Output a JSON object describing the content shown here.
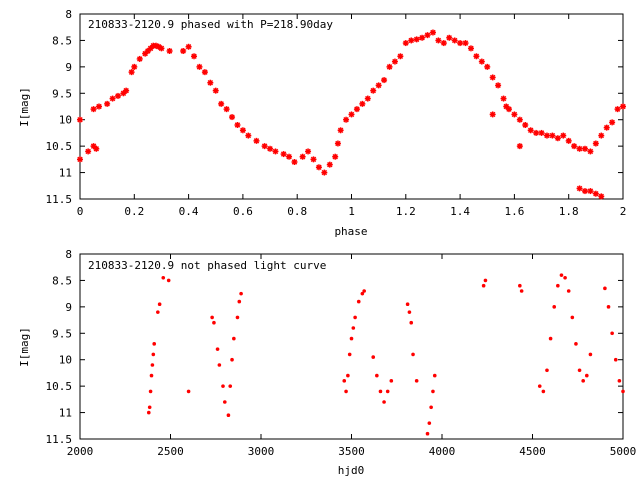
{
  "chart_data": [
    {
      "type": "scatter",
      "title": "210833-2120.9 phased with P=218.90day",
      "xlabel": "phase",
      "ylabel": "I[mag]",
      "xlim": [
        0,
        2
      ],
      "ylim": [
        8,
        11.5
      ],
      "y_inverted": true,
      "xticks": [
        "0",
        "0.2",
        "0.4",
        "0.6",
        "0.8",
        "1",
        "1.2",
        "1.4",
        "1.6",
        "1.8",
        "2"
      ],
      "yticks": [
        "8",
        "8.5",
        "9",
        "9.5",
        "10",
        "10.5",
        "11",
        "11.5"
      ],
      "marker": "plus-cross",
      "color": "#ff0000",
      "series": [
        {
          "points": [
            [
              0.0,
              10.0
            ],
            [
              0.0,
              10.75
            ],
            [
              0.03,
              10.6
            ],
            [
              0.05,
              10.5
            ],
            [
              0.06,
              10.55
            ],
            [
              0.05,
              9.8
            ],
            [
              0.07,
              9.75
            ],
            [
              0.1,
              9.7
            ],
            [
              0.12,
              9.6
            ],
            [
              0.14,
              9.55
            ],
            [
              0.16,
              9.5
            ],
            [
              0.17,
              9.45
            ],
            [
              0.19,
              9.1
            ],
            [
              0.2,
              9.0
            ],
            [
              0.22,
              8.85
            ],
            [
              0.24,
              8.75
            ],
            [
              0.25,
              8.7
            ],
            [
              0.26,
              8.65
            ],
            [
              0.27,
              8.6
            ],
            [
              0.28,
              8.6
            ],
            [
              0.29,
              8.62
            ],
            [
              0.3,
              8.65
            ],
            [
              0.33,
              8.7
            ],
            [
              0.38,
              8.7
            ],
            [
              0.4,
              8.62
            ],
            [
              0.42,
              8.8
            ],
            [
              0.44,
              9.0
            ],
            [
              0.46,
              9.1
            ],
            [
              0.48,
              9.3
            ],
            [
              0.5,
              9.45
            ],
            [
              0.52,
              9.7
            ],
            [
              0.54,
              9.8
            ],
            [
              0.56,
              9.95
            ],
            [
              0.58,
              10.1
            ],
            [
              0.6,
              10.2
            ],
            [
              0.62,
              10.3
            ],
            [
              0.65,
              10.4
            ],
            [
              0.68,
              10.5
            ],
            [
              0.7,
              10.55
            ],
            [
              0.72,
              10.6
            ],
            [
              0.75,
              10.65
            ],
            [
              0.77,
              10.7
            ],
            [
              0.79,
              10.8
            ],
            [
              0.82,
              10.7
            ],
            [
              0.84,
              10.6
            ],
            [
              0.86,
              10.75
            ],
            [
              0.88,
              10.9
            ],
            [
              0.9,
              11.0
            ],
            [
              0.92,
              10.85
            ],
            [
              0.94,
              10.7
            ],
            [
              0.95,
              10.45
            ],
            [
              0.96,
              10.2
            ],
            [
              0.98,
              10.0
            ],
            [
              1.0,
              9.9
            ],
            [
              1.02,
              9.8
            ],
            [
              1.04,
              9.7
            ],
            [
              1.06,
              9.6
            ],
            [
              1.08,
              9.45
            ],
            [
              1.1,
              9.35
            ],
            [
              1.12,
              9.25
            ],
            [
              1.14,
              9.0
            ],
            [
              1.16,
              8.9
            ],
            [
              1.18,
              8.8
            ],
            [
              1.2,
              8.55
            ],
            [
              1.22,
              8.5
            ],
            [
              1.24,
              8.48
            ],
            [
              1.26,
              8.45
            ],
            [
              1.28,
              8.4
            ],
            [
              1.3,
              8.35
            ],
            [
              1.32,
              8.5
            ],
            [
              1.34,
              8.55
            ],
            [
              1.36,
              8.45
            ],
            [
              1.38,
              8.5
            ],
            [
              1.4,
              8.55
            ],
            [
              1.42,
              8.55
            ],
            [
              1.44,
              8.65
            ],
            [
              1.46,
              8.8
            ],
            [
              1.48,
              8.9
            ],
            [
              1.5,
              9.0
            ],
            [
              1.52,
              9.2
            ],
            [
              1.54,
              9.35
            ],
            [
              1.56,
              9.6
            ],
            [
              1.58,
              9.8
            ],
            [
              1.6,
              9.9
            ],
            [
              1.62,
              10.0
            ],
            [
              1.64,
              10.1
            ],
            [
              1.66,
              10.2
            ],
            [
              1.68,
              10.25
            ],
            [
              1.7,
              10.25
            ],
            [
              1.72,
              10.3
            ],
            [
              1.74,
              10.3
            ],
            [
              1.76,
              10.35
            ],
            [
              1.78,
              10.3
            ],
            [
              1.8,
              10.4
            ],
            [
              1.82,
              10.5
            ],
            [
              1.84,
              10.55
            ],
            [
              1.86,
              10.55
            ],
            [
              1.88,
              10.6
            ],
            [
              1.9,
              10.45
            ],
            [
              1.92,
              10.3
            ],
            [
              1.94,
              10.15
            ],
            [
              1.96,
              10.05
            ],
            [
              1.98,
              9.8
            ],
            [
              2.0,
              9.75
            ],
            [
              1.52,
              9.9
            ],
            [
              1.57,
              9.75
            ],
            [
              1.62,
              10.5
            ],
            [
              1.84,
              11.3
            ],
            [
              1.86,
              11.35
            ],
            [
              1.88,
              11.35
            ],
            [
              1.9,
              11.4
            ],
            [
              1.92,
              11.45
            ]
          ]
        }
      ]
    },
    {
      "type": "scatter",
      "title": "210833-2120.9 not phased light curve",
      "xlabel": "hjd0",
      "ylabel": "I[mag]",
      "xlim": [
        2000,
        5000
      ],
      "ylim": [
        8,
        11.5
      ],
      "y_inverted": true,
      "xticks": [
        "2000",
        "2500",
        "3000",
        "3500",
        "4000",
        "4500",
        "5000"
      ],
      "yticks": [
        "8",
        "8.5",
        "9",
        "9.5",
        "10",
        "10.5",
        "11",
        "11.5"
      ],
      "marker": "dot",
      "color": "#ff0000",
      "series": [
        {
          "points": [
            [
              2380,
              11.0
            ],
            [
              2385,
              10.9
            ],
            [
              2390,
              10.6
            ],
            [
              2395,
              10.3
            ],
            [
              2400,
              10.1
            ],
            [
              2405,
              9.9
            ],
            [
              2410,
              9.7
            ],
            [
              2430,
              9.1
            ],
            [
              2440,
              8.95
            ],
            [
              2460,
              8.45
            ],
            [
              2490,
              8.5
            ],
            [
              2600,
              10.6
            ],
            [
              2730,
              9.2
            ],
            [
              2740,
              9.3
            ],
            [
              2760,
              9.8
            ],
            [
              2770,
              10.1
            ],
            [
              2790,
              10.5
            ],
            [
              2800,
              10.8
            ],
            [
              2820,
              11.05
            ],
            [
              2830,
              10.5
            ],
            [
              2840,
              10.0
            ],
            [
              2850,
              9.6
            ],
            [
              2870,
              9.2
            ],
            [
              2880,
              8.9
            ],
            [
              2890,
              8.75
            ],
            [
              3460,
              10.4
            ],
            [
              3470,
              10.6
            ],
            [
              3480,
              10.3
            ],
            [
              3490,
              9.9
            ],
            [
              3500,
              9.6
            ],
            [
              3510,
              9.4
            ],
            [
              3520,
              9.2
            ],
            [
              3540,
              8.9
            ],
            [
              3560,
              8.75
            ],
            [
              3570,
              8.7
            ],
            [
              3620,
              9.95
            ],
            [
              3640,
              10.3
            ],
            [
              3660,
              10.6
            ],
            [
              3680,
              10.8
            ],
            [
              3700,
              10.6
            ],
            [
              3720,
              10.4
            ],
            [
              3810,
              8.95
            ],
            [
              3820,
              9.1
            ],
            [
              3830,
              9.3
            ],
            [
              3840,
              9.9
            ],
            [
              3860,
              10.4
            ],
            [
              3920,
              11.4
            ],
            [
              3930,
              11.2
            ],
            [
              3940,
              10.9
            ],
            [
              3950,
              10.6
            ],
            [
              3960,
              10.3
            ],
            [
              4230,
              8.6
            ],
            [
              4240,
              8.5
            ],
            [
              4430,
              8.6
            ],
            [
              4440,
              8.7
            ],
            [
              4540,
              10.5
            ],
            [
              4560,
              10.6
            ],
            [
              4580,
              10.2
            ],
            [
              4600,
              9.6
            ],
            [
              4620,
              9.0
            ],
            [
              4640,
              8.6
            ],
            [
              4660,
              8.4
            ],
            [
              4680,
              8.45
            ],
            [
              4700,
              8.7
            ],
            [
              4720,
              9.2
            ],
            [
              4740,
              9.7
            ],
            [
              4760,
              10.2
            ],
            [
              4780,
              10.4
            ],
            [
              4800,
              10.3
            ],
            [
              4820,
              9.9
            ],
            [
              4900,
              8.65
            ],
            [
              4920,
              9.0
            ],
            [
              4940,
              9.5
            ],
            [
              4960,
              10.0
            ],
            [
              4980,
              10.4
            ],
            [
              5000,
              10.6
            ]
          ]
        }
      ]
    }
  ]
}
